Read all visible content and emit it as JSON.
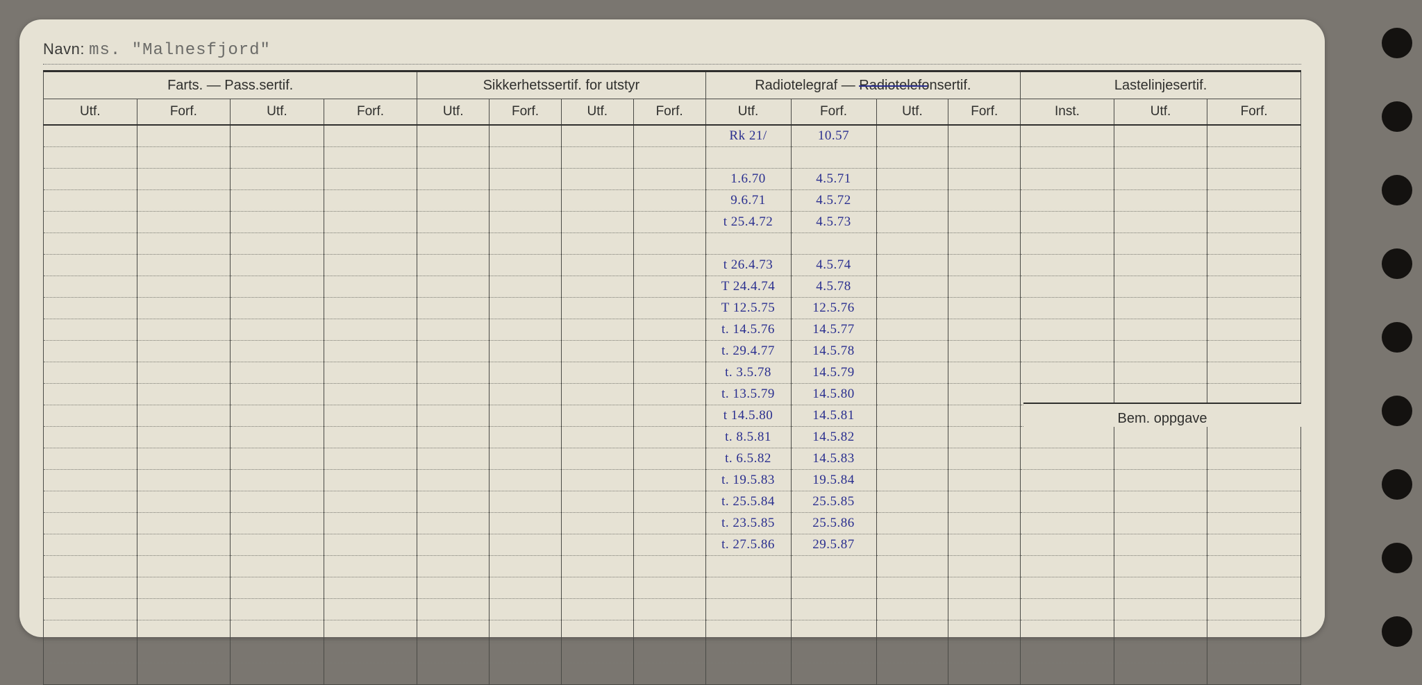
{
  "navn": {
    "label": "Navn:",
    "value": "ms. \"Malnesfjord\""
  },
  "groups": {
    "farts": "Farts. — Pass.sertif.",
    "sikker": "Sikkerhetssertif. for utstyr",
    "radio": "Radiotelegraf — Radiotelefonsertif.",
    "laste": "Lastelinjesertif."
  },
  "sub": {
    "utf": "Utf.",
    "forf": "Forf.",
    "inst": "Inst."
  },
  "bem": "Bem. oppgave",
  "radio_entries": [
    {
      "utf": "Rk 21/",
      "forf": "10.57"
    },
    {
      "utf": "",
      "forf": ""
    },
    {
      "utf": "1.6.70",
      "forf": "4.5.71"
    },
    {
      "utf": "9.6.71",
      "forf": "4.5.72"
    },
    {
      "utf": "t 25.4.72",
      "forf": "4.5.73"
    },
    {
      "utf": "",
      "forf": ""
    },
    {
      "utf": "t 26.4.73",
      "forf": "4.5.74"
    },
    {
      "utf": "T 24.4.74",
      "forf": "4.5.78"
    },
    {
      "utf": "T 12.5.75",
      "forf": "12.5.76"
    },
    {
      "utf": "t. 14.5.76",
      "forf": "14.5.77"
    },
    {
      "utf": "t. 29.4.77",
      "forf": "14.5.78"
    },
    {
      "utf": "t. 3.5.78",
      "forf": "14.5.79"
    },
    {
      "utf": "t. 13.5.79",
      "forf": "14.5.80"
    },
    {
      "utf": "t 14.5.80",
      "forf": "14.5.81"
    },
    {
      "utf": "t. 8.5.81",
      "forf": "14.5.82"
    },
    {
      "utf": "t. 6.5.82",
      "forf": "14.5.83"
    },
    {
      "utf": "t. 19.5.83",
      "forf": "19.5.84"
    },
    {
      "utf": "t. 25.5.84",
      "forf": "25.5.85"
    },
    {
      "utf": "t. 23.5.85",
      "forf": "25.5.86"
    },
    {
      "utf": "t. 27.5.86",
      "forf": "29.5.87"
    }
  ],
  "row_count": 26,
  "colors": {
    "card_bg": "#e6e2d4",
    "ink": "#2f2f2d",
    "pen": "#2a2f8f",
    "page_bg": "#7a7670"
  },
  "column_widths_pct": {
    "farts": [
      7,
      7,
      7,
      7
    ],
    "sikker": [
      5.4,
      5.4,
      5.4,
      5.4
    ],
    "radio": [
      6.4,
      6.4,
      5.4,
      5.4
    ],
    "laste": [
      7,
      7,
      7
    ]
  }
}
